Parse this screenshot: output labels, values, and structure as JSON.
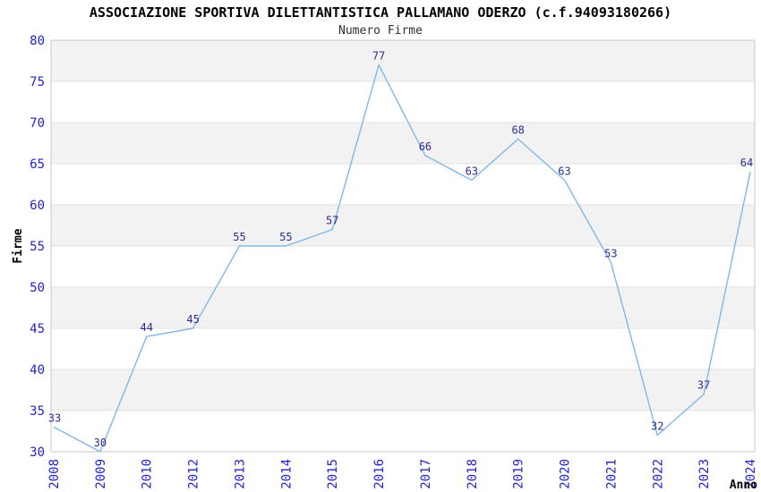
{
  "title": "ASSOCIAZIONE SPORTIVA DILETTANTISTICA PALLAMANO ODERZO (c.f.94093180266)",
  "subtitle": "Numero Firme",
  "chart_data": {
    "type": "line",
    "title": "ASSOCIAZIONE SPORTIVA DILETTANTISTICA PALLAMANO ODERZO (c.f.94093180266)",
    "subtitle": "Numero Firme",
    "x": [
      "2008",
      "2009",
      "2010",
      "2012",
      "2013",
      "2014",
      "2015",
      "2016",
      "2017",
      "2018",
      "2019",
      "2020",
      "2021",
      "2022",
      "2023",
      "2024"
    ],
    "values": [
      33,
      30,
      44,
      45,
      55,
      55,
      57,
      77,
      66,
      63,
      68,
      63,
      53,
      32,
      37,
      64
    ],
    "data_labels": [
      "33",
      "30",
      "44",
      "45",
      "55",
      "55",
      "57",
      "77",
      "66",
      "63",
      "68",
      "63",
      "53",
      "32",
      "37",
      "64"
    ],
    "xlabel": "Anno",
    "ylabel": "Firme",
    "ylim": [
      30,
      80
    ],
    "ytick_step": 5,
    "yticks": [
      "30",
      "35",
      "40",
      "45",
      "50",
      "55",
      "60",
      "65",
      "70",
      "75",
      "80"
    ],
    "grid": "alternating-horizontal-bands",
    "legend": "none",
    "note_missing_year": "2011",
    "colors": {
      "line": "#7eb8ea",
      "tick_label": "#2323cc",
      "data_label": "#2c2c96",
      "band": "#f2f2f2",
      "gridline": "#e3e3e3",
      "plot_border": "#c8c8c8",
      "axis_title": "#000000",
      "background": "#ffffff"
    }
  }
}
